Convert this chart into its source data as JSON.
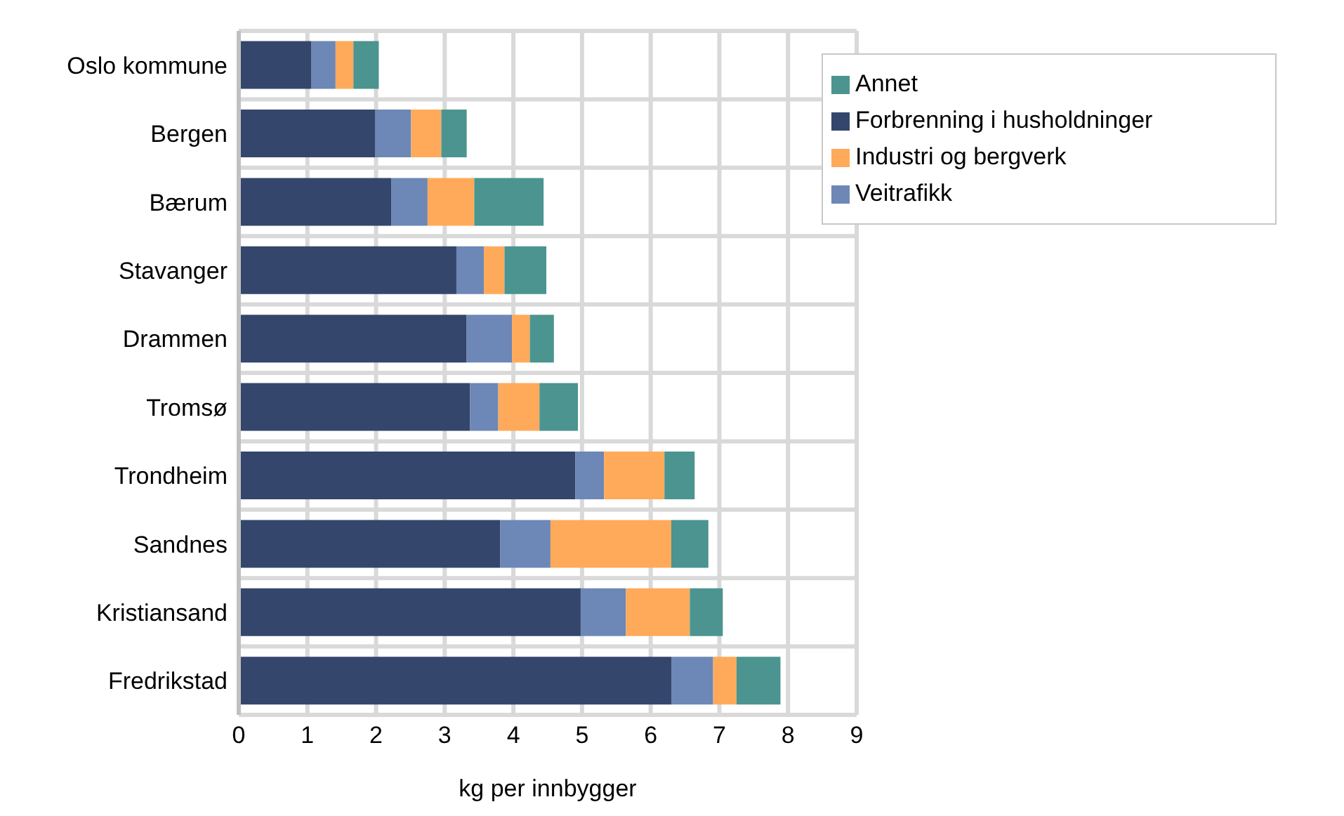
{
  "chart_data": {
    "type": "bar",
    "orientation": "horizontal",
    "stacked": true,
    "xlabel": "kg per innbygger",
    "categories": [
      "Oslo kommune",
      "Bergen",
      "Bærum",
      "Stavanger",
      "Drammen",
      "Tromsø",
      "Trondheim",
      "Sandnes",
      "Kristiansand",
      "Fredrikstad"
    ],
    "series": [
      {
        "name": "Forbrenning i husholdninger",
        "color": "#34466b",
        "values": [
          1.06,
          1.99,
          2.22,
          3.17,
          3.32,
          3.37,
          4.9,
          3.81,
          4.98,
          6.3
        ]
      },
      {
        "name": "Veitrafikk",
        "color": "#6d87b6",
        "values": [
          0.35,
          0.52,
          0.53,
          0.4,
          0.66,
          0.41,
          0.42,
          0.73,
          0.66,
          0.61
        ]
      },
      {
        "name": "Industri og bergverk",
        "color": "#ffaa5a",
        "values": [
          0.26,
          0.44,
          0.68,
          0.3,
          0.26,
          0.6,
          0.88,
          1.76,
          0.93,
          0.34
        ]
      },
      {
        "name": "Annet",
        "color": "#4b9490",
        "values": [
          0.37,
          0.37,
          1.01,
          0.61,
          0.35,
          0.56,
          0.44,
          0.54,
          0.48,
          0.64
        ]
      }
    ],
    "xlim": [
      0,
      9
    ],
    "xticks": [
      0,
      1,
      2,
      3,
      4,
      5,
      6,
      7,
      8,
      9
    ],
    "grid": true,
    "legend": "top right"
  }
}
